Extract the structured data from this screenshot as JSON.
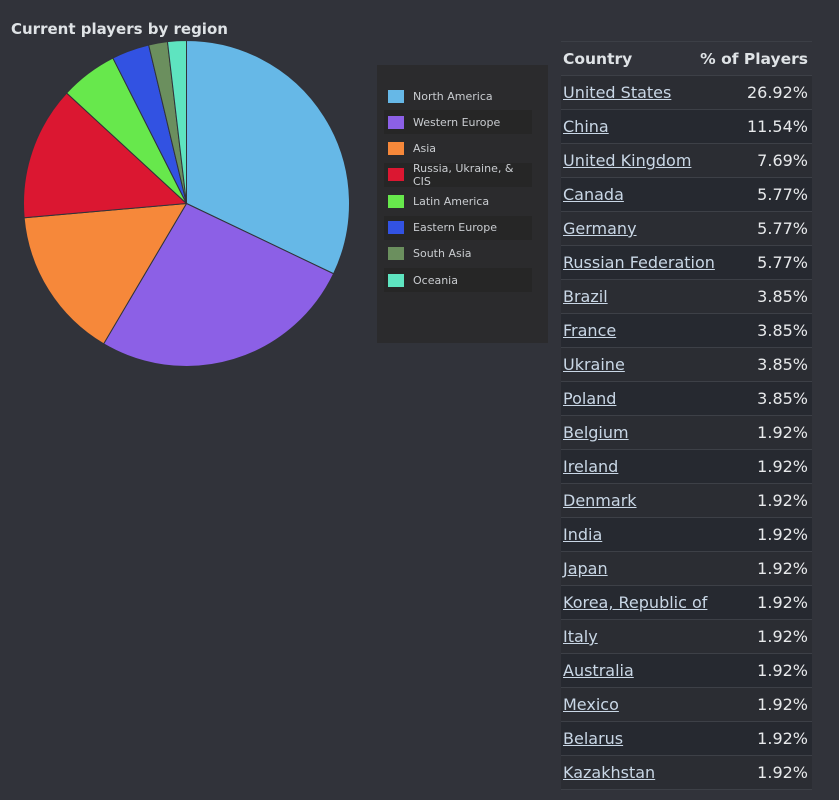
{
  "title": "Current players by region",
  "chart_data": {
    "type": "pie",
    "categories": [
      "North America",
      "Western Europe",
      "Asia",
      "Russia, Ukraine, & CIS",
      "Latin America",
      "Eastern Europe",
      "South Asia",
      "Oceania"
    ],
    "values": [
      32.7,
      26.9,
      15.4,
      13.5,
      5.8,
      3.8,
      1.9,
      1.9
    ],
    "colors": [
      "#66b8e7",
      "#8c60e6",
      "#f6883a",
      "#db1731",
      "#67e84c",
      "#3252e2",
      "#6b8f5e",
      "#5ee4c0"
    ],
    "legend_position": "right"
  },
  "table": {
    "header_country": "Country",
    "header_pct": "% of Players",
    "rows": [
      {
        "country": "United States",
        "pct": "26.92%"
      },
      {
        "country": "China",
        "pct": "11.54%"
      },
      {
        "country": "United Kingdom",
        "pct": "7.69%"
      },
      {
        "country": "Canada",
        "pct": "5.77%"
      },
      {
        "country": "Germany",
        "pct": "5.77%"
      },
      {
        "country": "Russian Federation",
        "pct": "5.77%"
      },
      {
        "country": "Brazil",
        "pct": "3.85%"
      },
      {
        "country": "France",
        "pct": "3.85%"
      },
      {
        "country": "Ukraine",
        "pct": "3.85%"
      },
      {
        "country": "Poland",
        "pct": "3.85%"
      },
      {
        "country": "Belgium",
        "pct": "1.92%"
      },
      {
        "country": "Ireland",
        "pct": "1.92%"
      },
      {
        "country": "Denmark",
        "pct": "1.92%"
      },
      {
        "country": "India",
        "pct": "1.92%"
      },
      {
        "country": "Japan",
        "pct": "1.92%"
      },
      {
        "country": "Korea, Republic of",
        "pct": "1.92%"
      },
      {
        "country": "Italy",
        "pct": "1.92%"
      },
      {
        "country": "Australia",
        "pct": "1.92%"
      },
      {
        "country": "Mexico",
        "pct": "1.92%"
      },
      {
        "country": "Belarus",
        "pct": "1.92%"
      },
      {
        "country": "Kazakhstan",
        "pct": "1.92%"
      }
    ]
  }
}
